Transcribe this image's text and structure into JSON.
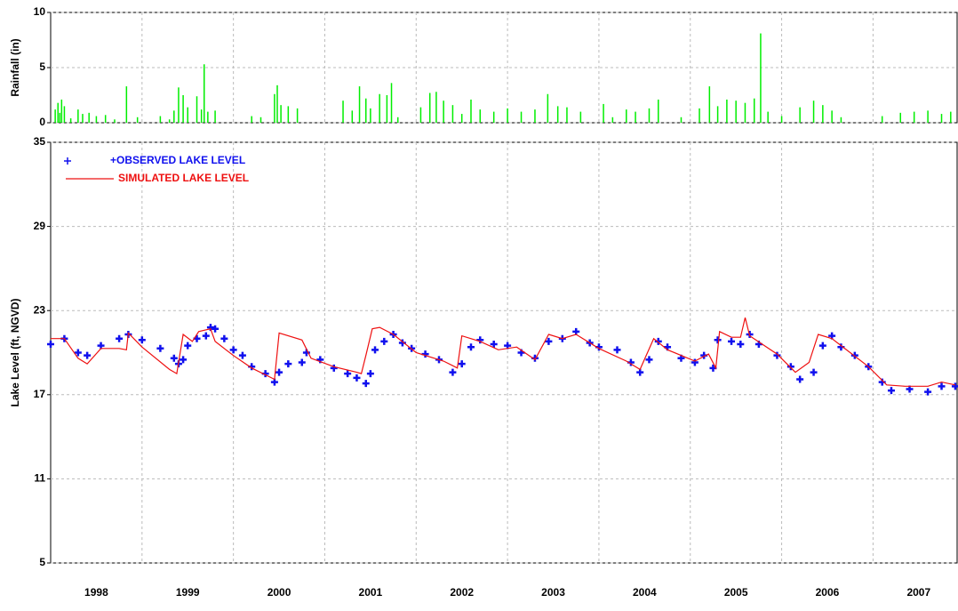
{
  "chart_data": [
    {
      "type": "bar",
      "y_label": "Rainfall (in)",
      "color": "#00ee00",
      "xlim": [
        1998.0,
        2007.92
      ],
      "xgrid": [
        1999,
        2000,
        2001,
        2002,
        2003,
        2004,
        2005,
        2006,
        2007
      ],
      "ylim": [
        0,
        10
      ],
      "yticks": [
        0,
        5,
        10
      ],
      "grid": true,
      "x": [
        1998.05,
        1998.08,
        1998.1,
        1998.12,
        1998.15,
        1998.22,
        1998.3,
        1998.35,
        1998.42,
        1998.5,
        1998.6,
        1998.7,
        1998.83,
        1998.95,
        1999.2,
        1999.3,
        1999.35,
        1999.4,
        1999.45,
        1999.5,
        1999.6,
        1999.65,
        1999.68,
        1999.72,
        1999.8,
        2000.2,
        2000.3,
        2000.45,
        2000.48,
        2000.52,
        2000.6,
        2000.7,
        2001.2,
        2001.3,
        2001.38,
        2001.45,
        2001.5,
        2001.6,
        2001.68,
        2001.73,
        2001.8,
        2002.05,
        2002.15,
        2002.22,
        2002.3,
        2002.4,
        2002.5,
        2002.6,
        2002.7,
        2002.85,
        2003.0,
        2003.15,
        2003.3,
        2003.44,
        2003.55,
        2003.65,
        2003.8,
        2004.05,
        2004.15,
        2004.3,
        2004.4,
        2004.55,
        2004.65,
        2004.9,
        2005.1,
        2005.21,
        2005.3,
        2005.4,
        2005.5,
        2005.6,
        2005.7,
        2005.77,
        2005.85,
        2006.0,
        2006.2,
        2006.35,
        2006.45,
        2006.55,
        2006.65,
        2007.1,
        2007.3,
        2007.45,
        2007.6,
        2007.75,
        2007.85
      ],
      "values": [
        1.2,
        1.8,
        0.9,
        2.1,
        1.5,
        0.4,
        1.2,
        0.8,
        0.9,
        0.6,
        0.7,
        0.3,
        3.3,
        0.5,
        0.6,
        0.3,
        1.1,
        3.2,
        2.5,
        1.4,
        2.4,
        1.2,
        5.3,
        1.0,
        1.1,
        0.6,
        0.5,
        2.6,
        3.4,
        1.6,
        1.5,
        1.3,
        2.0,
        1.1,
        3.3,
        2.2,
        1.3,
        2.6,
        2.5,
        3.6,
        0.5,
        1.4,
        2.7,
        2.8,
        2.0,
        1.6,
        0.8,
        2.1,
        1.2,
        1.0,
        1.3,
        1.0,
        1.2,
        2.6,
        1.5,
        1.4,
        1.0,
        1.7,
        0.5,
        1.2,
        1.0,
        1.3,
        2.1,
        0.5,
        1.3,
        3.3,
        1.5,
        2.1,
        2.0,
        1.8,
        2.2,
        8.1,
        1.0,
        0.6,
        1.4,
        2.0,
        1.6,
        1.1,
        0.5,
        0.6,
        0.9,
        1.0,
        1.1,
        0.8,
        1.0
      ]
    },
    {
      "type": "line",
      "y_label": "Lake Level (ft, NGVD)",
      "legend": "upper left",
      "xlim": [
        1998.0,
        2007.92
      ],
      "xgrid": [
        1999,
        2000,
        2001,
        2002,
        2003,
        2004,
        2005,
        2006,
        2007
      ],
      "xticks": [
        {
          "value": 1998.5,
          "label": "1998"
        },
        {
          "value": 1999.5,
          "label": "1999"
        },
        {
          "value": 2000.5,
          "label": "2000"
        },
        {
          "value": 2001.5,
          "label": "2001"
        },
        {
          "value": 2002.5,
          "label": "2002"
        },
        {
          "value": 2003.5,
          "label": "2003"
        },
        {
          "value": 2004.5,
          "label": "2004"
        },
        {
          "value": 2005.5,
          "label": "2005"
        },
        {
          "value": 2006.5,
          "label": "2006"
        },
        {
          "value": 2007.5,
          "label": "2007"
        }
      ],
      "ylim": [
        5,
        35
      ],
      "yticks": [
        5,
        11,
        17,
        23,
        29,
        35
      ],
      "grid": true,
      "series": [
        {
          "name": "+OBSERVED LAKE LEVEL",
          "color": "#1010ee",
          "marker": "+",
          "x": [
            1998.0,
            1998.15,
            1998.3,
            1998.4,
            1998.55,
            1998.75,
            1998.85,
            1999.0,
            1999.2,
            1999.35,
            1999.4,
            1999.45,
            1999.5,
            1999.6,
            1999.7,
            1999.75,
            1999.8,
            1999.9,
            2000.0,
            2000.1,
            2000.2,
            2000.35,
            2000.45,
            2000.5,
            2000.6,
            2000.75,
            2000.8,
            2000.95,
            2001.1,
            2001.25,
            2001.35,
            2001.45,
            2001.5,
            2001.55,
            2001.65,
            2001.75,
            2001.85,
            2001.95,
            2002.1,
            2002.25,
            2002.4,
            2002.5,
            2002.6,
            2002.7,
            2002.85,
            2003.0,
            2003.15,
            2003.3,
            2003.45,
            2003.6,
            2003.75,
            2003.9,
            2004.0,
            2004.2,
            2004.35,
            2004.45,
            2004.55,
            2004.65,
            2004.75,
            2004.9,
            2005.05,
            2005.15,
            2005.25,
            2005.3,
            2005.45,
            2005.55,
            2005.65,
            2005.75,
            2005.95,
            2006.1,
            2006.2,
            2006.35,
            2006.45,
            2006.55,
            2006.65,
            2006.8,
            2006.95,
            2007.1,
            2007.2,
            2007.4,
            2007.6,
            2007.75,
            2007.9
          ],
          "values": [
            20.6,
            21.0,
            20.0,
            19.8,
            20.5,
            21.0,
            21.3,
            20.9,
            20.3,
            19.6,
            19.2,
            19.5,
            20.5,
            21.0,
            21.2,
            21.8,
            21.7,
            21.0,
            20.2,
            19.8,
            19.0,
            18.5,
            17.9,
            18.6,
            19.2,
            19.3,
            20.0,
            19.5,
            18.9,
            18.5,
            18.2,
            17.8,
            18.5,
            20.2,
            20.8,
            21.3,
            20.7,
            20.3,
            19.9,
            19.5,
            18.6,
            19.2,
            20.4,
            20.9,
            20.6,
            20.5,
            20.0,
            19.6,
            20.8,
            21.0,
            21.5,
            20.7,
            20.4,
            20.2,
            19.3,
            18.6,
            19.5,
            20.8,
            20.4,
            19.6,
            19.3,
            19.8,
            18.9,
            20.9,
            20.8,
            20.6,
            21.3,
            20.6,
            19.8,
            19.0,
            18.1,
            18.6,
            20.5,
            21.2,
            20.4,
            19.8,
            19.0,
            17.9,
            17.3,
            17.4,
            17.2,
            17.6,
            17.6
          ]
        },
        {
          "name": "SIMULATED LAKE LEVEL",
          "color": "#ee1010",
          "x": [
            1998.0,
            1998.15,
            1998.3,
            1998.4,
            1998.55,
            1998.75,
            1998.83,
            1998.85,
            1999.0,
            1999.3,
            1999.38,
            1999.45,
            1999.55,
            1999.62,
            1999.75,
            1999.8,
            2000.0,
            2000.2,
            2000.45,
            2000.5,
            2000.75,
            2000.85,
            2001.1,
            2001.35,
            2001.4,
            2001.45,
            2001.52,
            2001.6,
            2001.75,
            2002.0,
            2002.3,
            2002.45,
            2002.5,
            2002.7,
            2002.9,
            2003.1,
            2003.3,
            2003.45,
            2003.6,
            2003.75,
            2004.0,
            2004.3,
            2004.45,
            2004.6,
            2004.75,
            2005.05,
            2005.2,
            2005.28,
            2005.32,
            2005.45,
            2005.55,
            2005.6,
            2005.65,
            2005.95,
            2006.15,
            2006.3,
            2006.4,
            2006.55,
            2006.65,
            2006.95,
            2007.15,
            2007.35,
            2007.6,
            2007.75,
            2007.9
          ],
          "values": [
            21.0,
            21.0,
            19.6,
            19.2,
            20.3,
            20.3,
            20.2,
            21.4,
            20.4,
            18.8,
            18.5,
            21.3,
            20.8,
            21.5,
            21.7,
            20.8,
            19.8,
            18.9,
            18.1,
            21.4,
            20.9,
            19.6,
            19.0,
            18.6,
            18.5,
            19.8,
            21.7,
            21.8,
            21.3,
            20.0,
            19.4,
            18.9,
            21.2,
            20.8,
            20.2,
            20.4,
            19.5,
            21.3,
            21.0,
            21.3,
            20.3,
            19.4,
            18.8,
            21.0,
            20.2,
            19.4,
            19.9,
            18.9,
            21.5,
            21.1,
            21.1,
            22.5,
            21.2,
            19.9,
            18.6,
            19.3,
            21.3,
            21.0,
            20.5,
            19.0,
            17.7,
            17.6,
            17.6,
            17.9,
            17.7
          ]
        }
      ]
    }
  ]
}
